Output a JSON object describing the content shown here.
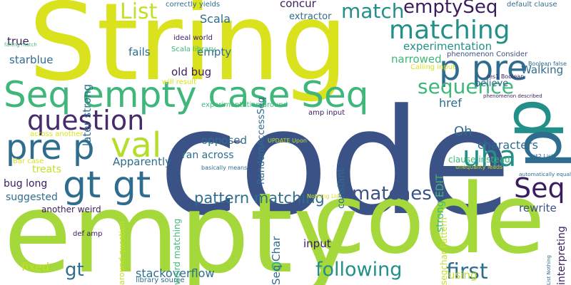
{
  "palette": {
    "background": "#ffffff",
    "navy": "#3b5287",
    "teal": "#229089",
    "blue": "#2f6d8e",
    "purple": "#482a6f",
    "green": "#3fb77a",
    "lime": "#9bd13c",
    "yellow": "#d9e21c",
    "mint": "#72cf5a"
  },
  "words": [
    {
      "text": "code",
      "color": "#3b5287"
    },
    {
      "text": "String",
      "color": "#d9e21c"
    },
    {
      "text": "empty",
      "color": "#a5d83a"
    },
    {
      "text": "code",
      "color": "#a5d83a"
    },
    {
      "text": "p",
      "color": "#229089"
    },
    {
      "text": "p",
      "color": "#2f6d8e"
    },
    {
      "text": "Seq empty case Seq",
      "color": "#3fb77a"
    },
    {
      "text": "pre p",
      "color": "#2f6d8e"
    },
    {
      "text": "val",
      "color": "#b5dd2b"
    },
    {
      "text": "gt gt",
      "color": "#2f6d8e"
    },
    {
      "text": "question",
      "color": "#482a6f"
    },
    {
      "text": "p pre",
      "color": "#2f6d8e"
    },
    {
      "text": "uha",
      "color": "#229089"
    },
    {
      "text": "Seq",
      "color": "#3b1d5f"
    },
    {
      "text": "matching",
      "color": "#229089"
    },
    {
      "text": "match",
      "color": "#229089"
    },
    {
      "text": "emptySeq",
      "color": "#3b1d5f"
    },
    {
      "text": "List",
      "color": "#c3df28"
    },
    {
      "text": "sequence",
      "color": "#3fb77a"
    },
    {
      "text": "matches",
      "color": "#3b5287"
    },
    {
      "text": "pattern matching",
      "color": "#2f6d8e"
    },
    {
      "text": "following",
      "color": "#229089"
    },
    {
      "text": "first",
      "color": "#2f6d8e"
    },
    {
      "text": "gt",
      "color": "#2f6d8e"
    },
    {
      "text": "o",
      "color": "#3fb77a"
    },
    {
      "text": "Oh",
      "color": "#2f6d8e"
    },
    {
      "text": "characters",
      "color": "#2f6d8e"
    },
    {
      "text": "Seq Char",
      "color": "#2f6d8e"
    },
    {
      "text": "stackoverflow",
      "color": "#2f6d8e"
    },
    {
      "text": "Scala",
      "color": "#2f6d8e"
    },
    {
      "text": "concur",
      "color": "#3b1d5f"
    },
    {
      "text": "extractor",
      "color": "#2f6d8e"
    },
    {
      "text": "RandomAccessSeq",
      "color": "#2f6d8e"
    },
    {
      "text": "later strong",
      "color": "#2f6d8e"
    },
    {
      "text": "experimentation",
      "color": "#229089"
    },
    {
      "text": "narrowed",
      "color": "#3fb77a"
    },
    {
      "text": "Walking",
      "color": "#2f6d8e"
    },
    {
      "text": "believe",
      "color": "#2f6d8e"
    },
    {
      "text": "href",
      "color": "#2f6d8e"
    },
    {
      "text": "fails",
      "color": "#2f6d8e"
    },
    {
      "text": "empty",
      "color": "#2f6d8e"
    },
    {
      "text": "old bug",
      "color": "#3b1d5f"
    },
    {
      "text": "true",
      "color": "#3b1d5f"
    },
    {
      "text": "starblue",
      "color": "#2f6d8e"
    },
    {
      "text": "Apparently",
      "color": "#2f6d8e"
    },
    {
      "text": "treats",
      "color": "#c3df28"
    },
    {
      "text": "bug long",
      "color": "#3b1d5f"
    },
    {
      "text": "suggested",
      "color": "#2f6d8e"
    },
    {
      "text": "another weird",
      "color": "#3b1d5f"
    },
    {
      "text": "fixed",
      "color": "#c3df28"
    },
    {
      "text": "opposed",
      "color": "#2f6d8e"
    },
    {
      "text": "ran across",
      "color": "#2f6d8e"
    },
    {
      "text": "constant",
      "color": "#2f6d8e"
    },
    {
      "text": "input",
      "color": "#3b1d5f"
    },
    {
      "text": "rewrite",
      "color": "#3b5287"
    },
    {
      "text": "interpreting",
      "color": "#3b1d5f"
    },
    {
      "text": "using",
      "color": "#c3df28"
    },
    {
      "text": "strong EDIT",
      "color": "#3fb77a"
    },
    {
      "text": "weird matching",
      "color": "#3fb77a"
    },
    {
      "text": "around question",
      "color": "#c3df28"
    },
    {
      "text": "segchar Pattern",
      "color": "#c3df28"
    },
    {
      "text": "correctly yields",
      "color": "#2f6d8e"
    },
    {
      "text": "ideal world",
      "color": "#3b1d5f"
    },
    {
      "text": "Scala library",
      "color": "#3fb77a"
    },
    {
      "text": "will result",
      "color": "#d9e21c"
    },
    {
      "text": "experimentation around",
      "color": "#3fb77a"
    },
    {
      "text": "across another",
      "color": "#d9e21c"
    },
    {
      "text": "amp input",
      "color": "#3b1d5f"
    },
    {
      "text": "default clause",
      "color": "#2f6d8e"
    },
    {
      "text": "phenomenon Consider",
      "color": "#3b5287"
    },
    {
      "text": "Calling input",
      "color": "#d9e21c"
    },
    {
      "text": "res1 Boolean",
      "color": "#3b1d5f"
    },
    {
      "text": "Boolean false",
      "color": "#2f6d8e"
    },
    {
      "text": "phenomenon described",
      "color": "#3b1d5f"
    },
    {
      "text": "UPDATE Upon",
      "color": "#c3df28"
    },
    {
      "text": "basically means",
      "color": "#2f6d8e"
    },
    {
      "text": "clause instead",
      "color": "#3fb77a"
    },
    {
      "text": "list2 List",
      "color": "#2f6d8e"
    },
    {
      "text": "unequality leads",
      "color": "#c3df28"
    },
    {
      "text": "automatically equal",
      "color": "#2f6d8e"
    },
    {
      "text": "def amp",
      "color": "#3b1d5f"
    },
    {
      "text": "Bar case",
      "color": "#d9e21c"
    },
    {
      "text": "Nothing List",
      "color": "#d9e21c"
    },
    {
      "text": "library source",
      "color": "#2f6d8e"
    },
    {
      "text": "failing match",
      "color": "#3fb77a"
    },
    {
      "text": "List Nothing",
      "color": "#2f6d8e"
    },
    {
      "text": "_",
      "color": "#3b1d5f"
    }
  ]
}
